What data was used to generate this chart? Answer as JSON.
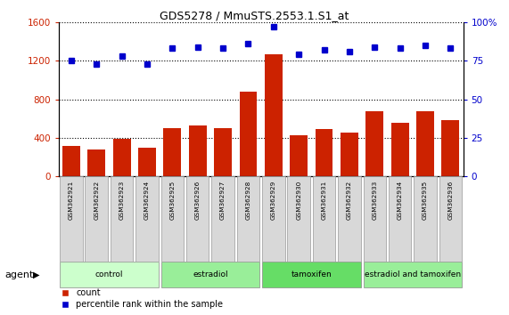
{
  "title": "GDS5278 / MmuSTS.2553.1.S1_at",
  "samples": [
    "GSM362921",
    "GSM362922",
    "GSM362923",
    "GSM362924",
    "GSM362925",
    "GSM362926",
    "GSM362927",
    "GSM362928",
    "GSM362929",
    "GSM362930",
    "GSM362931",
    "GSM362932",
    "GSM362933",
    "GSM362934",
    "GSM362935",
    "GSM362936"
  ],
  "counts": [
    320,
    280,
    390,
    295,
    500,
    530,
    500,
    880,
    1270,
    430,
    490,
    450,
    680,
    560,
    680,
    580
  ],
  "percentile_ranks": [
    75,
    73,
    78,
    73,
    83,
    84,
    83,
    86,
    97,
    79,
    82,
    81,
    84,
    83,
    85,
    83
  ],
  "groups": [
    {
      "label": "control",
      "start": 0,
      "end": 4,
      "color": "#ccffcc"
    },
    {
      "label": "estradiol",
      "start": 4,
      "end": 8,
      "color": "#99ee99"
    },
    {
      "label": "tamoxifen",
      "start": 8,
      "end": 12,
      "color": "#66dd66"
    },
    {
      "label": "estradiol and tamoxifen",
      "start": 12,
      "end": 16,
      "color": "#99ee99"
    }
  ],
  "bar_color": "#cc2200",
  "dot_color": "#0000cc",
  "left_ylim": [
    0,
    1600
  ],
  "right_ylim": [
    0,
    100
  ],
  "left_yticks": [
    0,
    400,
    800,
    1200,
    1600
  ],
  "right_yticks": [
    0,
    25,
    50,
    75,
    100
  ],
  "right_yticklabels": [
    "0",
    "25",
    "50",
    "75",
    "100%"
  ],
  "agent_label": "agent",
  "legend_count": "count",
  "legend_percentile": "percentile rank within the sample",
  "bar_color_hex": "#cc2200",
  "dot_color_hex": "#0000cc",
  "tick_label_color_left": "#cc2200",
  "tick_label_color_right": "#0000cc"
}
